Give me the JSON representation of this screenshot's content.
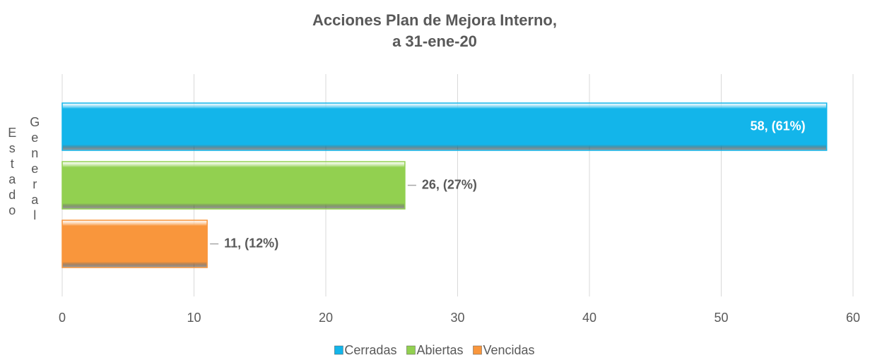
{
  "chart_data": {
    "type": "bar",
    "orientation": "horizontal",
    "title": [
      "Acciones Plan de Mejora Interno,",
      "a 31-ene-20"
    ],
    "y_label": "Estado",
    "categories": [
      "General"
    ],
    "series": [
      {
        "name": "Cerradas",
        "color": "#13b5ea",
        "values": [
          58
        ],
        "value_labels": [
          "58, (61%)"
        ]
      },
      {
        "name": "Abiertas",
        "color": "#92d050",
        "values": [
          26
        ],
        "value_labels": [
          "26, (27%)"
        ]
      },
      {
        "name": "Vencidas",
        "color": "#f9963c",
        "values": [
          11
        ],
        "value_labels": [
          "11, (12%)"
        ]
      }
    ],
    "xlim": [
      0,
      60
    ],
    "xticks": [
      0,
      10,
      20,
      30,
      40,
      50,
      60
    ],
    "grid": true,
    "legend": "bottom"
  }
}
